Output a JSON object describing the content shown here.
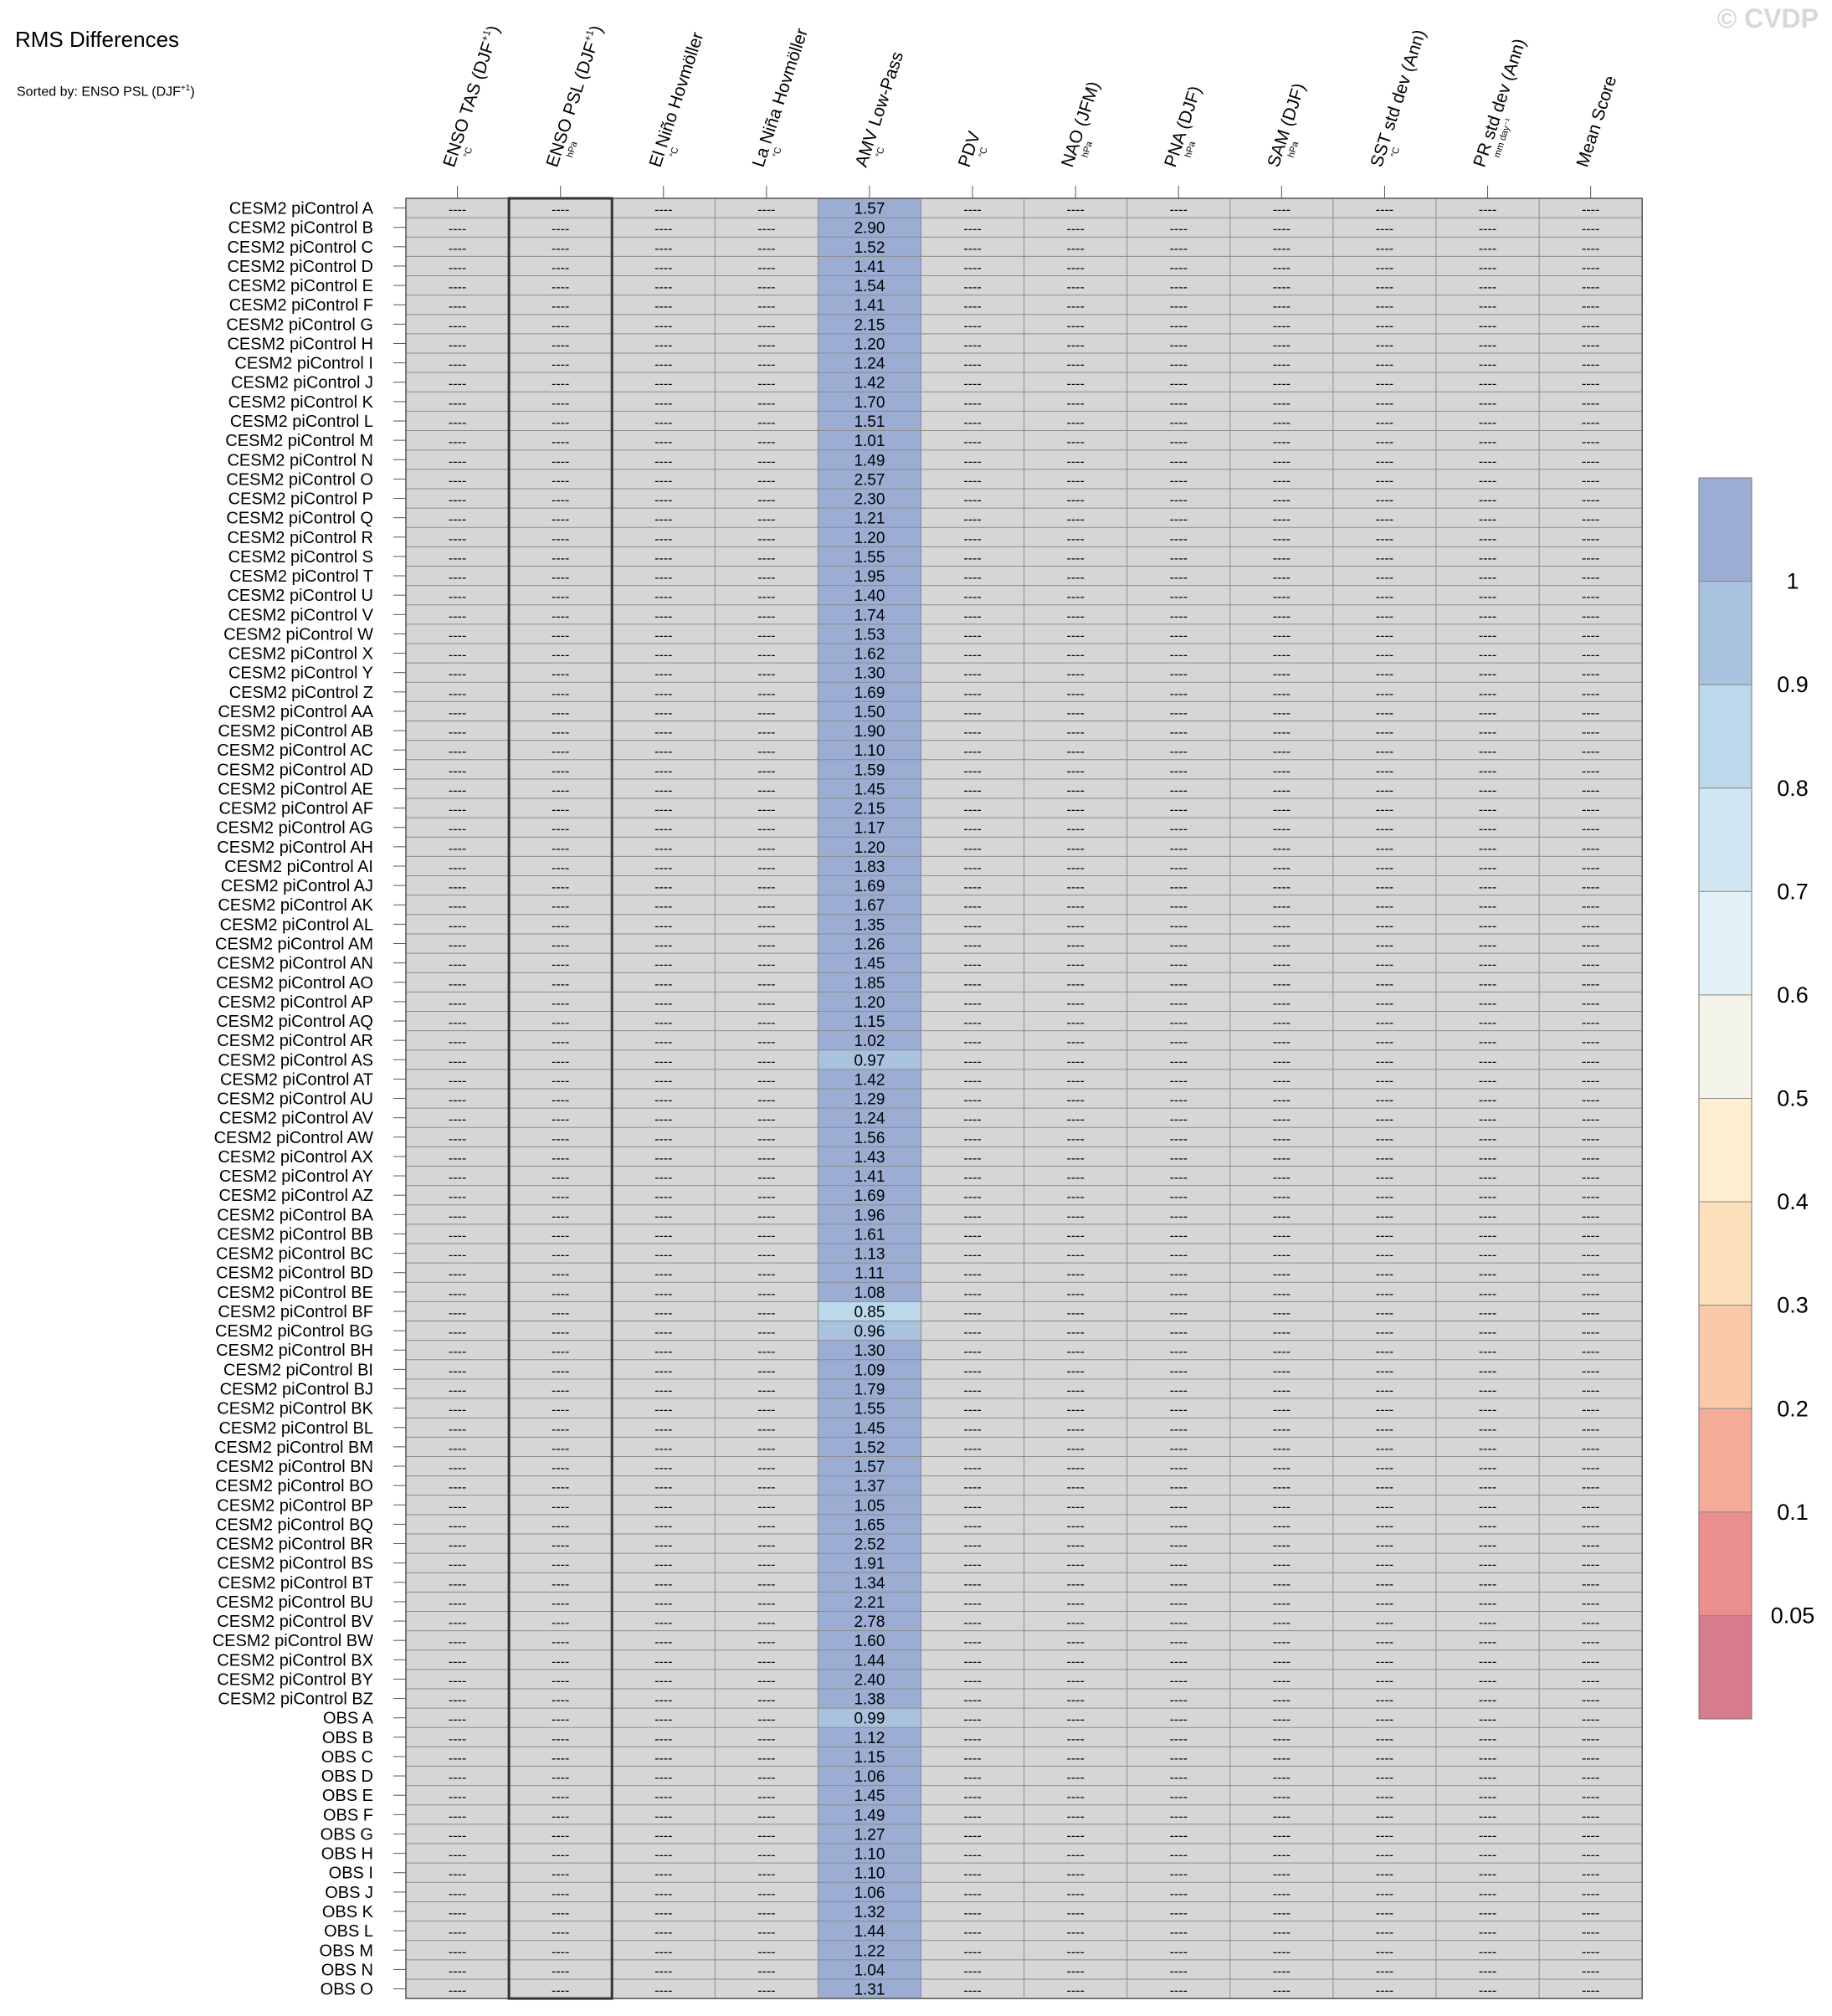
{
  "watermark": "© CVDP",
  "chart_data": {
    "type": "heatmap",
    "title": "RMS Differences",
    "subtitle": "Sorted by: ENSO PSL (DJF",
    "subtitle_sup": "+1",
    "subtitle_end": ")",
    "missing_label": "----",
    "highlight_column": 1,
    "columns": [
      {
        "name": "ENSO TAS (DJF",
        "sup": "+1",
        "end": ")",
        "unit": "°C"
      },
      {
        "name": "ENSO PSL (DJF",
        "sup": "+1",
        "end": ")",
        "unit": "hPa"
      },
      {
        "name": "El Niño Hovmöller",
        "sup": "",
        "end": "",
        "unit": "°C"
      },
      {
        "name": "La Niña Hovmöller",
        "sup": "",
        "end": "",
        "unit": "°C"
      },
      {
        "name": "AMV Low-Pass",
        "sup": "",
        "end": "",
        "unit": "°C"
      },
      {
        "name": "PDV",
        "sup": "",
        "end": "",
        "unit": "°C"
      },
      {
        "name": "NAO (JFM)",
        "sup": "",
        "end": "",
        "unit": "hPa"
      },
      {
        "name": "PNA (DJF)",
        "sup": "",
        "end": "",
        "unit": "hPa"
      },
      {
        "name": "SAM (DJF)",
        "sup": "",
        "end": "",
        "unit": "hPa"
      },
      {
        "name": "SST std dev (Ann)",
        "sup": "",
        "end": "",
        "unit": "°C"
      },
      {
        "name": "PR std dev (Ann)",
        "sup": "",
        "end": "",
        "unit": "mm day⁻¹"
      },
      {
        "name": "Mean Score",
        "sup": "",
        "end": "",
        "unit": ""
      }
    ],
    "rows": [
      "CESM2 piControl A",
      "CESM2 piControl B",
      "CESM2 piControl C",
      "CESM2 piControl D",
      "CESM2 piControl E",
      "CESM2 piControl F",
      "CESM2 piControl G",
      "CESM2 piControl H",
      "CESM2 piControl I",
      "CESM2 piControl J",
      "CESM2 piControl K",
      "CESM2 piControl L",
      "CESM2 piControl M",
      "CESM2 piControl N",
      "CESM2 piControl O",
      "CESM2 piControl P",
      "CESM2 piControl Q",
      "CESM2 piControl R",
      "CESM2 piControl S",
      "CESM2 piControl T",
      "CESM2 piControl U",
      "CESM2 piControl V",
      "CESM2 piControl W",
      "CESM2 piControl X",
      "CESM2 piControl Y",
      "CESM2 piControl Z",
      "CESM2 piControl AA",
      "CESM2 piControl AB",
      "CESM2 piControl AC",
      "CESM2 piControl AD",
      "CESM2 piControl AE",
      "CESM2 piControl AF",
      "CESM2 piControl AG",
      "CESM2 piControl AH",
      "CESM2 piControl AI",
      "CESM2 piControl AJ",
      "CESM2 piControl AK",
      "CESM2 piControl AL",
      "CESM2 piControl AM",
      "CESM2 piControl AN",
      "CESM2 piControl AO",
      "CESM2 piControl AP",
      "CESM2 piControl AQ",
      "CESM2 piControl AR",
      "CESM2 piControl AS",
      "CESM2 piControl AT",
      "CESM2 piControl AU",
      "CESM2 piControl AV",
      "CESM2 piControl AW",
      "CESM2 piControl AX",
      "CESM2 piControl AY",
      "CESM2 piControl AZ",
      "CESM2 piControl BA",
      "CESM2 piControl BB",
      "CESM2 piControl BC",
      "CESM2 piControl BD",
      "CESM2 piControl BE",
      "CESM2 piControl BF",
      "CESM2 piControl BG",
      "CESM2 piControl BH",
      "CESM2 piControl BI",
      "CESM2 piControl BJ",
      "CESM2 piControl BK",
      "CESM2 piControl BL",
      "CESM2 piControl BM",
      "CESM2 piControl BN",
      "CESM2 piControl BO",
      "CESM2 piControl BP",
      "CESM2 piControl BQ",
      "CESM2 piControl BR",
      "CESM2 piControl BS",
      "CESM2 piControl BT",
      "CESM2 piControl BU",
      "CESM2 piControl BV",
      "CESM2 piControl BW",
      "CESM2 piControl BX",
      "CESM2 piControl BY",
      "CESM2 piControl BZ",
      "OBS A",
      "OBS B",
      "OBS C",
      "OBS D",
      "OBS E",
      "OBS F",
      "OBS G",
      "OBS H",
      "OBS I",
      "OBS J",
      "OBS K",
      "OBS L",
      "OBS M",
      "OBS N",
      "OBS O"
    ],
    "values_column_index": 4,
    "values": [
      "1.57",
      "2.90",
      "1.52",
      "1.41",
      "1.54",
      "1.41",
      "2.15",
      "1.20",
      "1.24",
      "1.42",
      "1.70",
      "1.51",
      "1.01",
      "1.49",
      "2.57",
      "2.30",
      "1.21",
      "1.20",
      "1.55",
      "1.95",
      "1.40",
      "1.74",
      "1.53",
      "1.62",
      "1.30",
      "1.69",
      "1.50",
      "1.90",
      "1.10",
      "1.59",
      "1.45",
      "2.15",
      "1.17",
      "1.20",
      "1.83",
      "1.69",
      "1.67",
      "1.35",
      "1.26",
      "1.45",
      "1.85",
      "1.20",
      "1.15",
      "1.02",
      "0.97",
      "1.42",
      "1.29",
      "1.24",
      "1.56",
      "1.43",
      "1.41",
      "1.69",
      "1.96",
      "1.61",
      "1.13",
      "1.11",
      "1.08",
      "0.85",
      "0.96",
      "1.30",
      "1.09",
      "1.79",
      "1.55",
      "1.45",
      "1.52",
      "1.57",
      "1.37",
      "1.05",
      "1.65",
      "2.52",
      "1.91",
      "1.34",
      "2.21",
      "2.78",
      "1.60",
      "1.44",
      "2.40",
      "1.38",
      "0.99",
      "1.12",
      "1.15",
      "1.06",
      "1.45",
      "1.49",
      "1.27",
      "1.10",
      "1.10",
      "1.06",
      "1.32",
      "1.44",
      "1.22",
      "1.04",
      "1.31"
    ],
    "colorbar": {
      "labels": [
        "1",
        "0.9",
        "0.8",
        "0.7",
        "0.6",
        "0.5",
        "0.4",
        "0.3",
        "0.2",
        "0.1",
        "0.05"
      ],
      "colors": [
        "#9cadd3",
        "#a9c2de",
        "#bcd8eb",
        "#d0e7f1",
        "#e3f2f6",
        "#f3f3e9",
        "#fcefcf",
        "#fce0bb",
        "#fac9a9",
        "#f4ac99",
        "#ea8f8d",
        "#d77c8c"
      ]
    },
    "missing_color": "#d6d6d6"
  }
}
